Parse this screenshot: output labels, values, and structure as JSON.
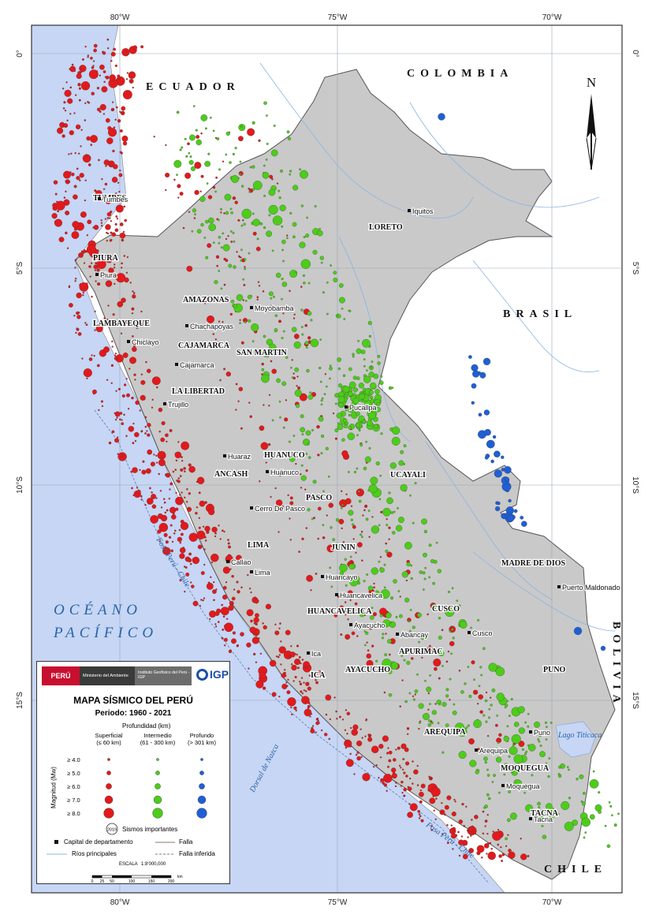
{
  "map": {
    "graticule": {
      "lon_labels": [
        "80°W",
        "75°W",
        "70°W"
      ],
      "lat_labels": [
        "0°",
        "5°S",
        "10°S",
        "15°S"
      ]
    },
    "countries": [
      "ECUADOR",
      "COLOMBIA",
      "BRASIL",
      "BOLIVIA",
      "CHILE"
    ],
    "ocean_lines": [
      "OCÉANO",
      "PACÍFICO"
    ],
    "ridges": [
      "Fosa Perú - Chile",
      "Dorsal de Nazca",
      "Fosa Perú - Chile"
    ],
    "regions": [
      "TUMBES",
      "PIURA",
      "LAMBAYEQUE",
      "AMAZONAS",
      "CAJAMARCA",
      "LA LIBERTAD",
      "SAN MARTIN",
      "LORETO",
      "ANCASH",
      "HUANUCO",
      "UCAYALI",
      "PASCO",
      "LIMA",
      "JUNIN",
      "MADRE DE DIOS",
      "HUANCAVELICA",
      "CUSCO",
      "APURIMAC",
      "AYACUCHO",
      "ICA",
      "PUNO",
      "AREQUIPA",
      "MOQUEGUA",
      "TACNA"
    ],
    "cities": [
      "Tumbes",
      "Piura",
      "Chiclayo",
      "Chachapoyas",
      "Moyobamba",
      "Cajamarca",
      "Trujillo",
      "Iquitos",
      "Huaraz",
      "Huánuco",
      "Pucallpa",
      "Cerro De Pasco",
      "Lima",
      "Callao",
      "Huancayo",
      "Huancavelica",
      "Ayacucho",
      "Abancay",
      "Cusco",
      "Puerto Maldonado",
      "Ica",
      "Puno",
      "Arequipa",
      "Moquegua",
      "Tacna"
    ],
    "lake": "Lago Titicaca",
    "north_label": "N",
    "colors": {
      "ocean": "#c6d6f4",
      "peru_land": "#c9c9c9",
      "neighbor_land": "#ffffff",
      "superficial": "#e3191b",
      "intermedio": "#4dcc1a",
      "profundo": "#1f5fd6"
    }
  },
  "legend": {
    "logo_peru": "PERÚ",
    "logo_ministry": "Ministerio del Ambiente",
    "logo_institute": "Instituto Geofísico del Perú - IGP",
    "logo_igp": "IGP",
    "title": "MAPA SÍSMICO DEL PERÚ",
    "period": "Periodo: 1960 - 2021",
    "depth_title": "Profundidad (km)",
    "columns": [
      {
        "name": "Superficial",
        "range": "(≤ 60 km)"
      },
      {
        "name": "Intermedio",
        "range": "(61 - 300 km)"
      },
      {
        "name": "Profundo",
        "range": "(> 301 km)"
      }
    ],
    "magnitude_axis": "Magnitud (Mw)",
    "magnitudes": [
      "≥ 4.0",
      "≥ 5.0",
      "≥ 6.0",
      "≥ 7.0",
      "≥ 8.0"
    ],
    "important_year": "2019",
    "important_label": "Sismos importantes",
    "capital_label": "Capital de departamento",
    "fault_label": "Falla",
    "rivers_label": "Ríos principales",
    "inferred_fault_label": "Falla inferida",
    "scale_title": "ESCALA",
    "scale_ratio": "1:8'000,000",
    "scale_ticks": [
      "0",
      "25",
      "50",
      "100",
      "150",
      "200"
    ],
    "scale_unit": "km"
  }
}
